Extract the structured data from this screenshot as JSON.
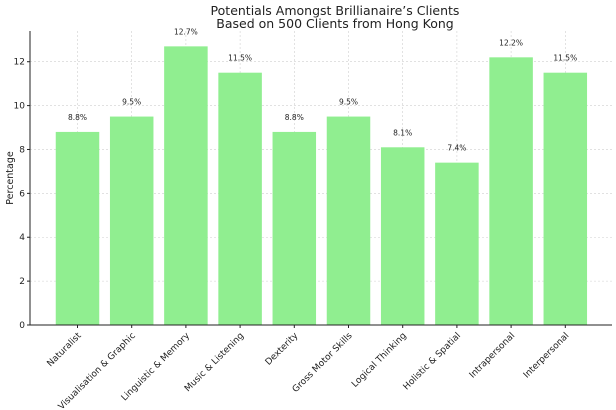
{
  "chart_data": {
    "type": "bar",
    "title": "Potentials Amongst Brillianaire’s Clients",
    "subtitle": "Based on 500 Clients from Hong Kong",
    "ylabel": "Percentage",
    "xlabel": "",
    "categories": [
      "Naturalist",
      "Visualisation & Graphic",
      "Linguistic & Memory",
      "Music & Listening",
      "Dexterity",
      "Gross Motor Skills",
      "Logical Thinking",
      "Holistic & Spatial",
      "Intrapersonal",
      "Interpersonal"
    ],
    "values": [
      8.8,
      9.5,
      12.7,
      11.5,
      8.8,
      9.5,
      8.1,
      7.4,
      12.2,
      11.5
    ],
    "data_labels": [
      "8.8%",
      "9.5%",
      "12.7%",
      "11.5%",
      "8.8%",
      "9.5%",
      "8.1%",
      "7.4%",
      "12.2%",
      "11.5%"
    ],
    "yticks": [
      "0",
      "2",
      "4",
      "6",
      "8",
      "10",
      "12"
    ],
    "ylim": [
      0,
      13.4
    ],
    "grid": true,
    "bar_color": "#90ee90"
  }
}
